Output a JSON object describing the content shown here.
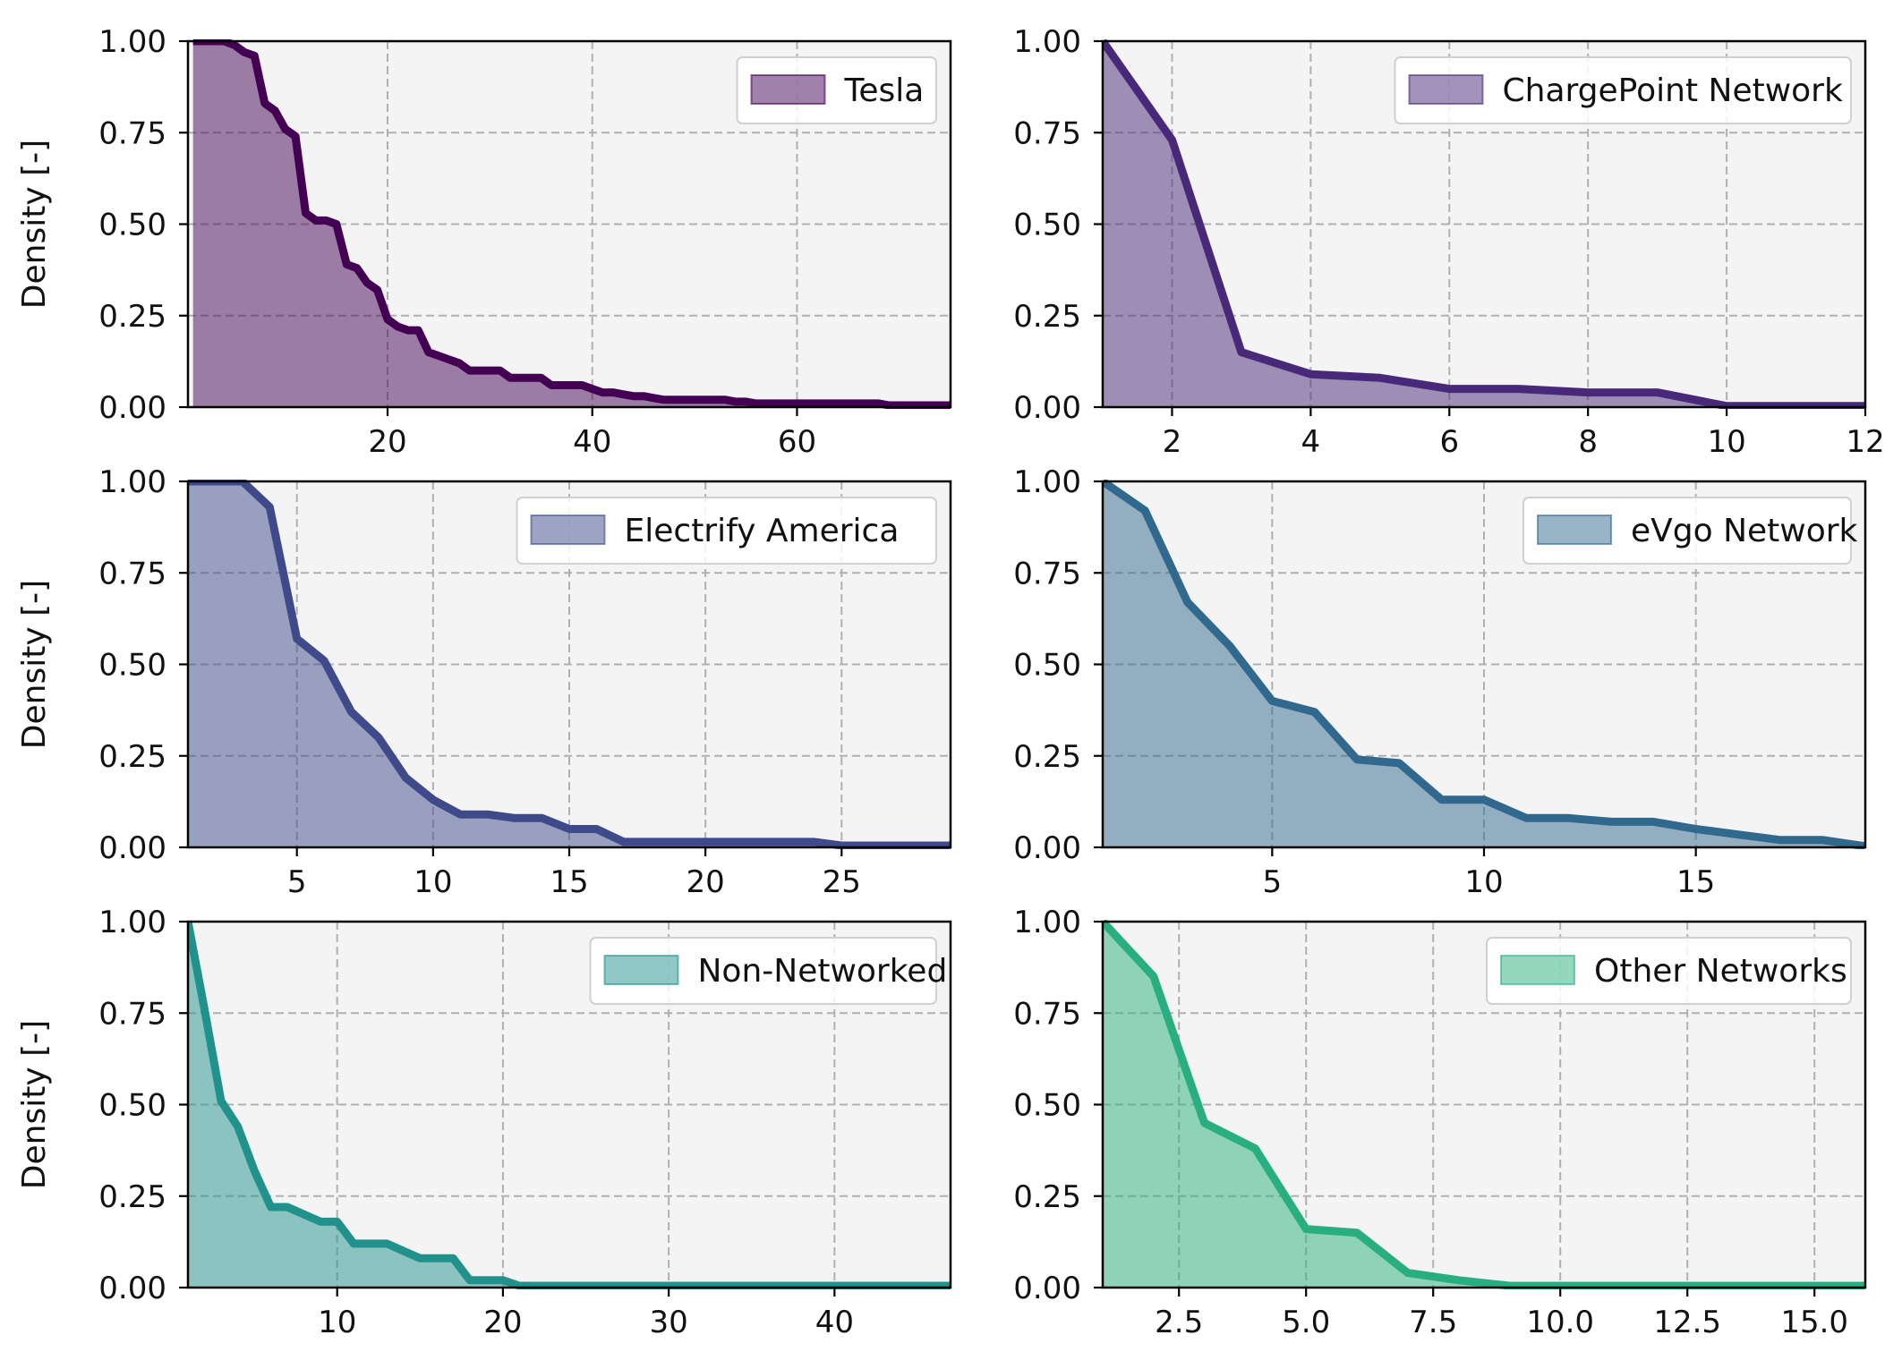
{
  "chart_data": [
    {
      "type": "area",
      "series_name": "Tesla",
      "color": "#440154",
      "ylabel": "Density [-]",
      "xlim": [
        0.5,
        75
      ],
      "ylim": [
        0,
        1
      ],
      "xticks": [
        20,
        40,
        60
      ],
      "xtick_labels": [
        "20",
        "40",
        "60"
      ],
      "yticks": [
        0,
        0.25,
        0.5,
        0.75,
        1.0
      ],
      "ytick_labels": [
        "0.00",
        "0.25",
        "0.50",
        "0.75",
        "1.00"
      ],
      "legend_position": "top-right",
      "x": [
        1,
        2,
        3,
        4,
        5,
        6,
        7,
        8,
        9,
        10,
        11,
        12,
        13,
        14,
        15,
        16,
        17,
        18,
        19,
        20,
        21,
        22,
        23,
        24,
        25,
        26,
        27,
        28,
        29,
        30,
        31,
        32,
        33,
        34,
        35,
        36,
        37,
        38,
        39,
        40,
        41,
        42,
        43,
        44,
        45,
        46,
        47,
        48,
        49,
        50,
        51,
        52,
        53,
        54,
        55,
        56,
        57,
        58,
        59,
        60,
        61,
        62,
        63,
        64,
        65,
        66,
        67,
        68,
        69,
        70,
        71,
        72,
        73,
        74,
        75
      ],
      "y": [
        1.0,
        1.0,
        1.0,
        1.0,
        0.99,
        0.97,
        0.96,
        0.83,
        0.81,
        0.76,
        0.74,
        0.53,
        0.51,
        0.51,
        0.5,
        0.39,
        0.38,
        0.34,
        0.32,
        0.24,
        0.22,
        0.21,
        0.21,
        0.15,
        0.14,
        0.13,
        0.12,
        0.1,
        0.1,
        0.1,
        0.1,
        0.08,
        0.08,
        0.08,
        0.08,
        0.06,
        0.06,
        0.06,
        0.06,
        0.05,
        0.04,
        0.04,
        0.035,
        0.03,
        0.03,
        0.025,
        0.02,
        0.02,
        0.02,
        0.02,
        0.02,
        0.02,
        0.02,
        0.015,
        0.015,
        0.01,
        0.01,
        0.01,
        0.01,
        0.01,
        0.01,
        0.01,
        0.01,
        0.01,
        0.01,
        0.01,
        0.01,
        0.01,
        0.005,
        0.005,
        0.005,
        0.005,
        0.005,
        0.005,
        0.005
      ]
    },
    {
      "type": "area",
      "series_name": "ChargePoint Network",
      "color": "#482878",
      "ylabel": "",
      "xlim": [
        1,
        12
      ],
      "ylim": [
        0,
        1
      ],
      "xticks": [
        2,
        4,
        6,
        8,
        10,
        12
      ],
      "xtick_labels": [
        "2",
        "4",
        "6",
        "8",
        "10",
        "12"
      ],
      "yticks": [
        0,
        0.25,
        0.5,
        0.75,
        1.0
      ],
      "ytick_labels": [
        "0.00",
        "0.25",
        "0.50",
        "0.75",
        "1.00"
      ],
      "legend_position": "top-right",
      "x": [
        1,
        2,
        3,
        4,
        5,
        6,
        7,
        8,
        9,
        10,
        11,
        12
      ],
      "y": [
        1.0,
        0.73,
        0.15,
        0.09,
        0.08,
        0.05,
        0.05,
        0.04,
        0.04,
        0.003,
        0.003,
        0.003
      ]
    },
    {
      "type": "area",
      "series_name": "Electrify America",
      "color": "#3e4a89",
      "ylabel": "Density [-]",
      "xlim": [
        1,
        29
      ],
      "ylim": [
        0,
        1
      ],
      "xticks": [
        5,
        10,
        15,
        20,
        25
      ],
      "xtick_labels": [
        "5",
        "10",
        "15",
        "20",
        "25"
      ],
      "yticks": [
        0,
        0.25,
        0.5,
        0.75,
        1.0
      ],
      "ytick_labels": [
        "0.00",
        "0.25",
        "0.50",
        "0.75",
        "1.00"
      ],
      "legend_position": "top-right",
      "x": [
        1,
        2,
        3,
        4,
        5,
        6,
        7,
        8,
        9,
        10,
        11,
        12,
        13,
        14,
        15,
        16,
        17,
        18,
        19,
        20,
        21,
        22,
        23,
        24,
        25,
        26,
        27,
        28,
        29
      ],
      "y": [
        1.0,
        1.0,
        1.0,
        0.93,
        0.57,
        0.51,
        0.37,
        0.3,
        0.19,
        0.13,
        0.09,
        0.09,
        0.08,
        0.08,
        0.05,
        0.05,
        0.015,
        0.015,
        0.015,
        0.015,
        0.015,
        0.015,
        0.015,
        0.015,
        0.005,
        0.005,
        0.005,
        0.005,
        0.005
      ]
    },
    {
      "type": "area",
      "series_name": "eVgo Network",
      "color": "#31688e",
      "ylabel": "",
      "xlim": [
        1,
        19
      ],
      "ylim": [
        0,
        1
      ],
      "xticks": [
        5,
        10,
        15
      ],
      "xtick_labels": [
        "5",
        "10",
        "15"
      ],
      "yticks": [
        0,
        0.25,
        0.5,
        0.75,
        1.0
      ],
      "ytick_labels": [
        "0.00",
        "0.25",
        "0.50",
        "0.75",
        "1.00"
      ],
      "legend_position": "top-right",
      "x": [
        1,
        2,
        3,
        4,
        5,
        6,
        7,
        8,
        9,
        10,
        11,
        12,
        13,
        14,
        15,
        16,
        17,
        18,
        19
      ],
      "y": [
        1.0,
        0.92,
        0.67,
        0.55,
        0.4,
        0.37,
        0.24,
        0.23,
        0.13,
        0.13,
        0.08,
        0.08,
        0.07,
        0.07,
        0.05,
        0.035,
        0.02,
        0.02,
        0.003
      ]
    },
    {
      "type": "area",
      "series_name": "Non-Networked",
      "color": "#21918c",
      "ylabel": "Density [-]",
      "xlim": [
        1,
        47
      ],
      "ylim": [
        0,
        1
      ],
      "xticks": [
        10,
        20,
        30,
        40
      ],
      "xtick_labels": [
        "10",
        "20",
        "30",
        "40"
      ],
      "yticks": [
        0,
        0.25,
        0.5,
        0.75,
        1.0
      ],
      "ytick_labels": [
        "0.00",
        "0.25",
        "0.50",
        "0.75",
        "1.00"
      ],
      "legend_position": "top-right",
      "x": [
        1,
        2,
        3,
        4,
        5,
        6,
        7,
        8,
        9,
        10,
        11,
        12,
        13,
        14,
        15,
        16,
        17,
        18,
        19,
        20,
        21,
        22,
        25,
        30,
        35,
        40,
        45,
        47
      ],
      "y": [
        1.0,
        0.76,
        0.51,
        0.44,
        0.32,
        0.22,
        0.22,
        0.2,
        0.18,
        0.18,
        0.12,
        0.12,
        0.12,
        0.1,
        0.08,
        0.08,
        0.08,
        0.02,
        0.02,
        0.02,
        0.005,
        0.005,
        0.005,
        0.005,
        0.005,
        0.005,
        0.005,
        0.005
      ]
    },
    {
      "type": "area",
      "series_name": "Other Networks",
      "color": "#29af7f",
      "ylabel": "",
      "xlim": [
        1,
        16
      ],
      "ylim": [
        0,
        1
      ],
      "xticks": [
        2.5,
        5.0,
        7.5,
        10.0,
        12.5,
        15.0
      ],
      "xtick_labels": [
        "2.5",
        "5.0",
        "7.5",
        "10.0",
        "12.5",
        "15.0"
      ],
      "yticks": [
        0,
        0.25,
        0.5,
        0.75,
        1.0
      ],
      "ytick_labels": [
        "0.00",
        "0.25",
        "0.50",
        "0.75",
        "1.00"
      ],
      "legend_position": "top-right",
      "x": [
        1,
        2,
        3,
        4,
        5,
        6,
        7,
        8,
        9,
        10,
        11,
        12,
        13,
        14,
        15,
        16
      ],
      "y": [
        1.0,
        0.85,
        0.45,
        0.38,
        0.16,
        0.15,
        0.04,
        0.02,
        0.005,
        0.005,
        0.005,
        0.005,
        0.005,
        0.005,
        0.005,
        0.005
      ]
    }
  ]
}
